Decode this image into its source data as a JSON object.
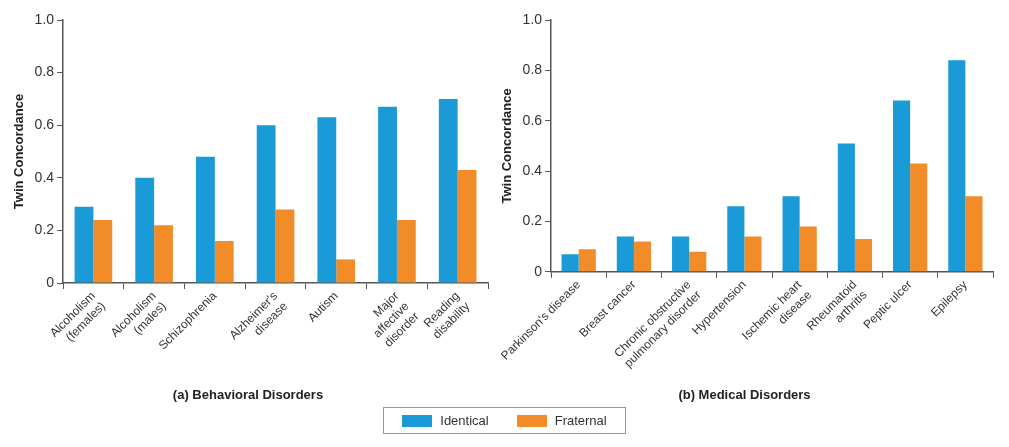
{
  "chart_data": [
    {
      "type": "bar",
      "title": "(a) Behavioral Disorders",
      "ylabel": "Twin Concordance",
      "categories": [
        "Alcoholism (females)",
        "Alcoholism (males)",
        "Schizophrenia",
        "Alzheimer's disease",
        "Autism",
        "Major affective disorder",
        "Reading disability"
      ],
      "series": [
        {
          "name": "Identical",
          "color": "#1a9ad6",
          "values": [
            0.29,
            0.4,
            0.48,
            0.6,
            0.63,
            0.67,
            0.7
          ]
        },
        {
          "name": "Fraternal",
          "color": "#f28c28",
          "values": [
            0.24,
            0.22,
            0.16,
            0.28,
            0.09,
            0.24,
            0.43
          ]
        }
      ],
      "ylim": [
        0,
        1
      ],
      "yticks": [
        0,
        0.2,
        0.4,
        0.6,
        0.8,
        {
          "value": 1,
          "label": "1.0"
        }
      ],
      "grid": false,
      "legend": "bottom"
    },
    {
      "type": "bar",
      "title": "(b) Medical Disorders",
      "ylabel": "Twin Concordance",
      "categories": [
        "Parkinson's disease",
        "Breast cancer",
        "Chronic obstructive pulmonary disorder",
        "Hypertension",
        "Ischemic heart disease",
        "Rheumatoid arthritis",
        "Peptic ulcer",
        "Epilepsy"
      ],
      "series": [
        {
          "name": "Identical",
          "color": "#1a9ad6",
          "values": [
            0.07,
            0.14,
            0.14,
            0.26,
            0.3,
            0.51,
            0.68,
            0.84
          ]
        },
        {
          "name": "Fraternal",
          "color": "#f28c28",
          "values": [
            0.09,
            0.12,
            0.08,
            0.14,
            0.18,
            0.13,
            0.43,
            0.3
          ]
        }
      ],
      "ylim": [
        0,
        1
      ],
      "yticks": [
        0,
        0.2,
        0.4,
        0.6,
        0.8,
        {
          "value": 1,
          "label": "1.0"
        }
      ],
      "grid": false,
      "legend": "bottom"
    }
  ]
}
